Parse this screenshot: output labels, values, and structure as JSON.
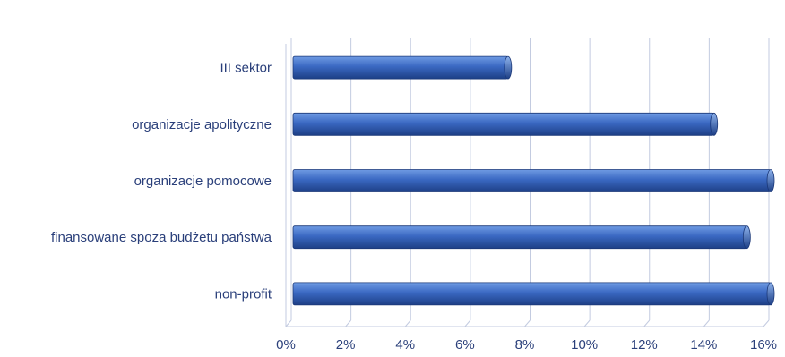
{
  "chart_data": {
    "type": "bar",
    "orientation": "horizontal",
    "categories": [
      "III sektor",
      "organizacje apolityczne",
      "organizacje pomocowe",
      "finansowane spoza budżetu państwa",
      "non-profit"
    ],
    "values": [
      7.2,
      14.1,
      16.2,
      15.2,
      16.2
    ],
    "value_unit": "%",
    "xlim": [
      0,
      16
    ],
    "xticks": [
      "0%",
      "2%",
      "4%",
      "6%",
      "8%",
      "10%",
      "12%",
      "14%",
      "16%"
    ],
    "title": "",
    "xlabel": "",
    "ylabel": "",
    "grid": true,
    "legend": "none",
    "colors": {
      "bar": "#3a68c2",
      "bar_light": "#6f9be3",
      "bar_dark": "#1d3f86",
      "grid": "#c3cbe0",
      "text": "#2a3f7a"
    }
  }
}
